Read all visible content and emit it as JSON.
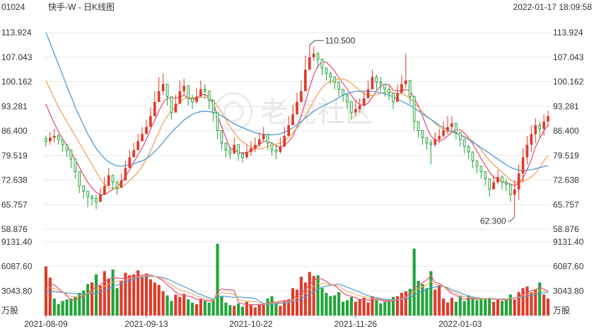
{
  "header": {
    "code": "01024",
    "title": "快手-W - 日K线图",
    "timestamp": "2022-01-17 18:09:58"
  },
  "watermark": "老虎社区",
  "colors": {
    "up": "#e03a2a",
    "down": "#22a33a",
    "ma_pink": "#e2557d",
    "ma_orange": "#f2a35a",
    "ma_blue": "#4d9ad6",
    "text": "#333333",
    "grid": "#e8e8e8"
  },
  "chart_data": [
    {
      "type": "candlestick",
      "panel": "price",
      "y_ticks": [
        "113.924",
        "107.043",
        "100.162",
        "93.281",
        "86.400",
        "79.519",
        "72.638",
        "65.757",
        "58.876"
      ],
      "ylim": [
        58.876,
        113.924
      ],
      "x_tick_labels": [
        "2021-08-09",
        "2021-09-13",
        "2021-10-22",
        "2021-11-26",
        "2022-01-03"
      ],
      "annotations": [
        {
          "text": "110.500",
          "value": 110.5,
          "kind": "high"
        },
        {
          "text": "62.300",
          "value": 62.3,
          "kind": "low"
        }
      ],
      "close": [
        83.5,
        84.5,
        85.0,
        84.0,
        82.5,
        81.0,
        78.5,
        75.0,
        71.0,
        69.5,
        68.0,
        67.5,
        66.5,
        68.5,
        71.0,
        74.0,
        72.0,
        70.5,
        72.5,
        76.0,
        79.0,
        81.0,
        83.5,
        85.5,
        87.5,
        90.5,
        94.5,
        97.5,
        99.5,
        96.0,
        91.5,
        94.0,
        97.5,
        99.0,
        95.5,
        94.5,
        96.0,
        98.0,
        97.5,
        95.0,
        91.5,
        86.5,
        83.0,
        81.0,
        80.0,
        82.5,
        80.0,
        79.0,
        80.5,
        81.5,
        82.5,
        84.0,
        85.5,
        83.0,
        81.0,
        80.5,
        82.0,
        85.0,
        88.0,
        91.0,
        94.5,
        97.5,
        103.5,
        107.0,
        108.0,
        106.5,
        104.0,
        102.5,
        101.5,
        100.0,
        98.0,
        96.5,
        94.5,
        91.5,
        92.5,
        93.5,
        95.5,
        98.0,
        101.5,
        100.0,
        99.5,
        98.0,
        97.0,
        94.5,
        97.0,
        99.5,
        100.5,
        96.0,
        89.0,
        86.5,
        84.5,
        83.0,
        82.5,
        84.0,
        85.0,
        86.5,
        87.5,
        88.5,
        86.0,
        84.0,
        82.0,
        80.5,
        78.0,
        76.5,
        75.0,
        73.0,
        70.0,
        72.0,
        73.5,
        72.0,
        71.5,
        68.5,
        70.0,
        74.5,
        79.0,
        82.5,
        85.5,
        88.0,
        87.0,
        89.0,
        90.5
      ],
      "high": [
        85.0,
        86.0,
        87.0,
        85.5,
        84.0,
        82.5,
        79.5,
        76.5,
        72.5,
        70.5,
        69.0,
        68.5,
        68.5,
        70.5,
        73.5,
        76.0,
        74.0,
        72.5,
        74.5,
        78.0,
        81.0,
        83.0,
        85.5,
        87.5,
        89.5,
        93.0,
        97.5,
        101.5,
        102.5,
        99.5,
        93.5,
        96.5,
        100.5,
        101.0,
        97.5,
        96.5,
        98.5,
        100.5,
        99.5,
        97.0,
        93.5,
        88.5,
        84.5,
        82.5,
        82.0,
        84.5,
        81.5,
        80.5,
        82.5,
        83.5,
        84.5,
        86.0,
        87.5,
        85.0,
        82.5,
        82.5,
        84.5,
        87.5,
        90.5,
        93.5,
        97.0,
        100.5,
        107.5,
        110.5,
        110.0,
        108.5,
        106.0,
        104.0,
        103.0,
        101.5,
        99.5,
        98.0,
        96.0,
        93.0,
        94.5,
        95.5,
        97.5,
        100.5,
        103.5,
        102.0,
        101.5,
        99.5,
        99.0,
        96.5,
        99.5,
        102.0,
        108.0,
        98.0,
        91.5,
        88.5,
        86.0,
        84.5,
        84.0,
        86.0,
        87.0,
        89.0,
        90.5,
        90.5,
        87.5,
        85.5,
        83.5,
        82.5,
        79.5,
        78.0,
        76.5,
        75.0,
        72.0,
        74.0,
        75.5,
        74.0,
        73.0,
        70.5,
        72.5,
        77.0,
        81.5,
        85.0,
        88.0,
        90.0,
        89.0,
        91.0,
        92.0
      ],
      "low": [
        82.0,
        82.5,
        83.0,
        82.5,
        80.5,
        79.0,
        76.0,
        73.0,
        69.0,
        67.5,
        65.0,
        65.5,
        64.5,
        66.5,
        69.0,
        72.0,
        70.0,
        68.5,
        70.5,
        74.0,
        77.0,
        79.0,
        81.5,
        83.5,
        85.5,
        88.5,
        92.5,
        95.0,
        96.5,
        93.5,
        89.5,
        92.0,
        95.5,
        96.5,
        93.5,
        92.5,
        94.0,
        96.0,
        95.5,
        92.5,
        89.0,
        84.0,
        81.0,
        79.0,
        78.5,
        80.5,
        78.0,
        77.5,
        78.5,
        79.5,
        80.5,
        82.0,
        83.5,
        81.0,
        79.5,
        78.5,
        80.0,
        83.0,
        86.0,
        89.0,
        92.5,
        95.0,
        101.0,
        105.0,
        106.0,
        104.0,
        102.0,
        100.5,
        99.5,
        98.0,
        96.0,
        94.5,
        92.5,
        89.5,
        90.5,
        91.5,
        93.5,
        96.0,
        99.0,
        98.0,
        97.5,
        96.0,
        95.0,
        92.5,
        95.0,
        97.5,
        98.5,
        94.0,
        86.5,
        84.5,
        82.5,
        81.0,
        77.0,
        82.0,
        83.0,
        84.5,
        85.5,
        86.5,
        84.0,
        82.0,
        80.0,
        78.5,
        76.0,
        74.5,
        73.0,
        71.0,
        68.0,
        70.0,
        71.5,
        70.0,
        69.5,
        66.5,
        62.3,
        67.0,
        72.0,
        77.0,
        80.5,
        83.0,
        84.5,
        85.0,
        87.5
      ],
      "ma": [
        {
          "key": "pink",
          "values": [
            94.0,
            91.0,
            88.5,
            86.2,
            84.0,
            82.5,
            80.5,
            78.3,
            76.2,
            74.0,
            72.0,
            70.5,
            69.2,
            68.5,
            68.6,
            69.3,
            70.0,
            70.8,
            71.9,
            73.6,
            75.5,
            77.6,
            79.7,
            81.6,
            84.0,
            86.8,
            89.4,
            92.0,
            94.2,
            95.6,
            95.5,
            95.6,
            95.8,
            96.4,
            95.6,
            95.0,
            95.6,
            96.5,
            96.6,
            95.8,
            93.8,
            90.8,
            87.6,
            84.4,
            81.6,
            81.2,
            80.4,
            80.2,
            80.3,
            80.7,
            81.5,
            82.5,
            83.5,
            83.4,
            82.9,
            82.2,
            81.9,
            82.4,
            83.4,
            85.0,
            87.5,
            90.5,
            94.4,
            98.5,
            102.1,
            104.5,
            105.8,
            105.6,
            104.5,
            103.1,
            101.3,
            99.7,
            98.1,
            96.3,
            94.8,
            93.7,
            93.5,
            94.2,
            95.8,
            97.7,
            98.9,
            99.4,
            99.3,
            97.8,
            97.6,
            97.6,
            98.0,
            97.6,
            95.6,
            93.4,
            90.6,
            87.4,
            85.0,
            83.9,
            83.5,
            84.0,
            85.0,
            86.0,
            86.8,
            86.7,
            85.8,
            84.5,
            82.8,
            80.7,
            78.6,
            76.8,
            74.9,
            73.4,
            72.8,
            72.3,
            71.8,
            71.5,
            71.1,
            71.7,
            73.1,
            75.6,
            78.5,
            81.9,
            84.3,
            86.4,
            88.0
          ],
          "note": "5-day moving average"
        },
        {
          "key": "orange",
          "values": [
            100.5,
            98.0,
            95.5,
            93.0,
            91.0,
            89.0,
            87.0,
            85.0,
            83.0,
            81.0,
            79.0,
            77.0,
            75.0,
            73.0,
            71.4,
            70.5,
            70.3,
            70.2,
            70.5,
            71.4,
            72.5,
            73.6,
            74.8,
            76.5,
            78.4,
            80.8,
            83.5,
            86.1,
            88.6,
            90.5,
            91.9,
            93.1,
            94.4,
            95.5,
            95.7,
            95.6,
            95.6,
            95.8,
            95.7,
            95.7,
            94.8,
            93.3,
            91.5,
            89.5,
            87.5,
            85.9,
            84.3,
            83.4,
            82.5,
            81.8,
            81.4,
            81.3,
            81.6,
            82.1,
            82.4,
            82.7,
            83.0,
            83.6,
            84.6,
            85.9,
            87.2,
            88.6,
            90.4,
            92.6,
            94.8,
            96.8,
            98.5,
            99.6,
            100.2,
            100.6,
            100.9,
            100.9,
            100.5,
            99.7,
            98.7,
            97.6,
            96.8,
            96.3,
            96.3,
            96.6,
            96.9,
            97.3,
            97.4,
            97.0,
            96.9,
            96.8,
            96.3,
            95.5,
            94.3,
            93.0,
            91.7,
            90.5,
            89.6,
            88.5,
            87.5,
            86.7,
            86.2,
            86.0,
            85.7,
            85.3,
            84.8,
            84.3,
            83.5,
            82.4,
            81.1,
            79.6,
            78.1,
            76.9,
            75.9,
            74.8,
            73.8,
            72.7,
            72.0,
            71.9,
            72.3,
            72.8,
            73.5,
            74.6,
            76.2,
            78.0,
            79.5
          ],
          "note": "10-day moving average"
        },
        {
          "key": "blue",
          "values": [
            113.9,
            111.0,
            108.0,
            105.0,
            102.0,
            99.0,
            96.0,
            93.0,
            90.5,
            88.0,
            85.5,
            83.5,
            81.5,
            80.0,
            78.7,
            77.7,
            77.1,
            76.6,
            76.5,
            76.7,
            76.9,
            77.2,
            77.6,
            78.0,
            78.6,
            79.5,
            80.6,
            81.8,
            83.2,
            84.6,
            86.0,
            87.2,
            88.3,
            89.4,
            90.3,
            91.0,
            91.5,
            91.8,
            91.9,
            91.8,
            91.6,
            91.2,
            90.6,
            89.9,
            89.1,
            88.4,
            87.8,
            87.3,
            86.8,
            86.3,
            85.9,
            85.6,
            85.4,
            85.3,
            85.3,
            85.4,
            85.6,
            86.0,
            86.6,
            87.3,
            88.1,
            89.0,
            90.0,
            91.0,
            91.9,
            92.6,
            93.2,
            93.8,
            94.4,
            95.0,
            95.7,
            96.4,
            96.9,
            97.2,
            97.4,
            97.5,
            97.5,
            97.5,
            97.4,
            97.3,
            97.1,
            96.8,
            96.4,
            95.9,
            95.3,
            94.7,
            94.1,
            93.5,
            92.8,
            92.0,
            91.2,
            90.4,
            89.6,
            88.8,
            88.0,
            87.3,
            86.8,
            86.3,
            85.8,
            85.2,
            84.6,
            84.0,
            83.3,
            82.5,
            81.7,
            80.9,
            80.1,
            79.3,
            78.5,
            77.7,
            76.9,
            76.2,
            75.7,
            75.4,
            75.3,
            75.4,
            75.5,
            75.8,
            76.1,
            76.4,
            76.7
          ],
          "note": "20-day moving average"
        }
      ]
    },
    {
      "type": "bar",
      "panel": "volume",
      "unit_label": "万股",
      "y_ticks": [
        "9131.40",
        "6087.60",
        "3043.80"
      ],
      "ylim": [
        0,
        9131.4
      ],
      "values": [
        6100,
        4700,
        2100,
        1400,
        1800,
        2000,
        2100,
        2300,
        2800,
        3100,
        3900,
        4100,
        5100,
        3700,
        5500,
        4600,
        5700,
        3400,
        4300,
        5300,
        5000,
        5100,
        5600,
        4800,
        5200,
        4500,
        4100,
        3800,
        3000,
        2500,
        1800,
        2600,
        2300,
        2700,
        2000,
        1600,
        1400,
        2100,
        1800,
        1600,
        2100,
        8900,
        2400,
        1600,
        1300,
        1200,
        1500,
        1100,
        1700,
        1300,
        1000,
        1400,
        1300,
        2100,
        2400,
        1600,
        1200,
        1900,
        2000,
        3400,
        3200,
        4800,
        4100,
        5400,
        4900,
        5000,
        3400,
        2800,
        2400,
        2500,
        2900,
        1700,
        1900,
        2300,
        1700,
        2000,
        2200,
        1600,
        2400,
        1900,
        1500,
        1700,
        2000,
        2300,
        2400,
        2800,
        3000,
        3300,
        8300,
        4300,
        3900,
        3400,
        5500,
        3200,
        3800,
        2100,
        1600,
        2200,
        1700,
        2400,
        1800,
        2500,
        2200,
        1900,
        2000,
        2100,
        2200,
        1700,
        2100,
        1800,
        1900,
        2600,
        2000,
        2900,
        3400,
        3600,
        2900,
        3200,
        4100,
        2600,
        2100
      ],
      "up": [
        1,
        1,
        0,
        0,
        0,
        0,
        0,
        0,
        0,
        0,
        0,
        1,
        0,
        1,
        1,
        1,
        0,
        0,
        1,
        1,
        1,
        1,
        1,
        1,
        1,
        1,
        1,
        1,
        1,
        0,
        0,
        1,
        1,
        1,
        0,
        0,
        1,
        1,
        0,
        0,
        0,
        0,
        0,
        0,
        0,
        1,
        0,
        0,
        1,
        1,
        1,
        1,
        1,
        0,
        0,
        0,
        1,
        1,
        1,
        1,
        1,
        1,
        1,
        1,
        1,
        0,
        0,
        0,
        0,
        0,
        0,
        0,
        0,
        0,
        1,
        1,
        1,
        1,
        1,
        0,
        0,
        0,
        0,
        0,
        1,
        1,
        1,
        0,
        0,
        0,
        0,
        0,
        0,
        1,
        1,
        1,
        1,
        1,
        0,
        0,
        0,
        0,
        0,
        0,
        0,
        0,
        0,
        1,
        1,
        0,
        0,
        0,
        1,
        1,
        1,
        1,
        1,
        1,
        0,
        1,
        1
      ],
      "ma_fast": [
        3800,
        3950,
        3800,
        3350,
        2950,
        2400,
        1900,
        1950,
        2200,
        2400,
        2800,
        3100,
        3600,
        3800,
        4200,
        4500,
        4700,
        4650,
        4600,
        4600,
        4800,
        4750,
        4900,
        5000,
        5100,
        5000,
        4900,
        4600,
        4300,
        3800,
        3400,
        2900,
        2600,
        2500,
        2400,
        2300,
        2000,
        2000,
        1900,
        1800,
        1800,
        3000,
        3300,
        3200,
        3200,
        3100,
        1650,
        1450,
        1350,
        1350,
        1350,
        1350,
        1350,
        1500,
        1650,
        1650,
        1750,
        1850,
        1850,
        2000,
        2500,
        2800,
        3200,
        3800,
        4300,
        4700,
        4500,
        4200,
        3900,
        3700,
        3300,
        2800,
        2500,
        2400,
        2200,
        2000,
        2000,
        1900,
        1950,
        2000,
        1900,
        1800,
        1700,
        1800,
        1900,
        2100,
        2400,
        2700,
        3500,
        3700,
        4100,
        4400,
        5000,
        4100,
        4000,
        3600,
        3200,
        2700,
        2500,
        2200,
        2000,
        2100,
        2100,
        2000,
        2100,
        2100,
        2100,
        2000,
        2000,
        1950,
        1900,
        2100,
        2200,
        2300,
        2700,
        2900,
        3100,
        3200,
        3500,
        3300,
        3000
      ],
      "ma_slow": [
        2900,
        2950,
        2950,
        2900,
        2850,
        2800,
        2750,
        2700,
        2700,
        2650,
        2700,
        2700,
        2800,
        2900,
        3100,
        3300,
        3600,
        3800,
        4000,
        4200,
        4350,
        4500,
        4650,
        4700,
        4800,
        4850,
        4850,
        4800,
        4700,
        4500,
        4300,
        4050,
        3800,
        3600,
        3350,
        3100,
        2800,
        2600,
        2400,
        2200,
        2000,
        2300,
        2400,
        2350,
        2300,
        2250,
        2300,
        2250,
        2200,
        2200,
        2100,
        1800,
        1500,
        1450,
        1400,
        1450,
        1500,
        1550,
        1600,
        1700,
        1850,
        2100,
        2350,
        2650,
        2950,
        3250,
        3500,
        3650,
        3750,
        3850,
        3900,
        3700,
        3500,
        3300,
        3100,
        2900,
        2650,
        2450,
        2300,
        2200,
        2100,
        2000,
        1950,
        1950,
        1950,
        2000,
        2100,
        2200,
        2600,
        2800,
        3000,
        3200,
        3500,
        3500,
        3600,
        3600,
        3450,
        3200,
        3000,
        2800,
        2600,
        2400,
        2300,
        2200,
        2150,
        2100,
        2100,
        2100,
        2050,
        2050,
        2050,
        2100,
        2150,
        2200,
        2300,
        2400,
        2500,
        2600,
        2750,
        2800,
        2850
      ]
    }
  ]
}
